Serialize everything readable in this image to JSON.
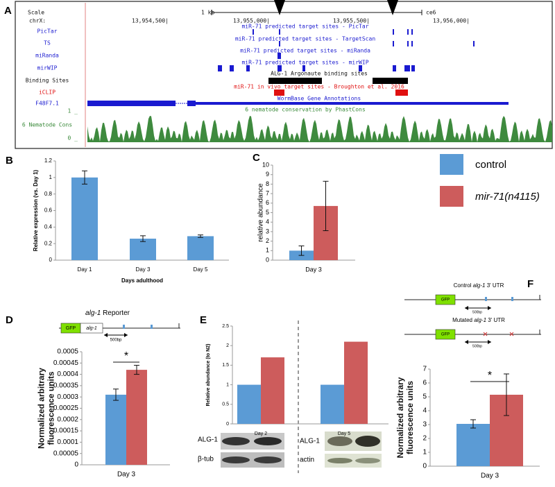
{
  "panel_labels": [
    "A",
    "B",
    "C",
    "D",
    "E",
    "F"
  ],
  "genome_browser": {
    "scale": {
      "label": "Scale",
      "length": "1 kb",
      "assembly": "ce6"
    },
    "position": {
      "label": "chrX:",
      "ticks": [
        "13,954,500|",
        "13,955,000|",
        "13,955,500|",
        "13,956,000|"
      ]
    },
    "tracks": [
      {
        "label": "PicTar",
        "title": "miR-71 predicted target sites - PicTar"
      },
      {
        "label": "TS",
        "title": "miR-71 predicted target sites - TargetScan"
      },
      {
        "label": "miRanda",
        "title": "miR-71 predicted target sites - miRanda"
      },
      {
        "label": "mirWIP",
        "title": "miR-71 predicted target sites - mirWIP"
      },
      {
        "label": "Binding Sites",
        "title": "ALG-1 Argonaute binding sites"
      },
      {
        "label": "iCLIP",
        "title": "miR-71 in vivo target sites - Broughton et al. 2016"
      },
      {
        "label": "F48F7.1",
        "title": "WormBase Gene Annotations"
      }
    ],
    "conservation": {
      "label": "6 Nematode Cons",
      "title": "6 nematode conservation by PhastCons",
      "max_label": "1 _",
      "min_label": "0 _"
    }
  },
  "legend": [
    {
      "name": "control",
      "color": "#5b9bd5"
    },
    {
      "name": "mir-71(n4115)",
      "color": "#cd5c5c"
    }
  ],
  "diagrams": {
    "D": {
      "title_gene": "alg-1",
      "title": "Reporter",
      "gfp": "GFP",
      "gene": "alg-1",
      "scale": "500bp"
    },
    "F": {
      "control_prefix": "Control",
      "control_gene": "alg-1",
      "control_suffix": "3' UTR",
      "mutated_prefix": "Mutated",
      "mutated_gene": "alg-1",
      "mutated_suffix": "3' UTR",
      "gfp": "GFP",
      "scale": "500bp"
    },
    "E": {
      "blots": [
        "ALG-1",
        "β-tub",
        "ALG-1",
        "actin"
      ]
    }
  },
  "chart_data": [
    {
      "type": "bar",
      "ylabel": "Relative expression (vs. Day 1)",
      "xlabel": "Days adulthood",
      "categories": [
        "Day 1",
        "Day 3",
        "Day 5"
      ],
      "series": [
        {
          "color": "#5b9bd5",
          "values": [
            1,
            0.26,
            0.29
          ],
          "errors": [
            0.08,
            0.035,
            0.015
          ]
        }
      ],
      "ylim": [
        0,
        1.2
      ],
      "yticks": [
        0,
        0.2,
        0.4,
        0.6,
        0.8,
        1,
        1.2
      ]
    },
    {
      "type": "bar",
      "ylabel": "relative abundance",
      "categories": [
        "Day 3"
      ],
      "series": [
        {
          "color": "#5b9bd5",
          "values": [
            1
          ],
          "errors": [
            0.5
          ]
        },
        {
          "color": "#cd5c5c",
          "values": [
            5.7
          ],
          "errors": [
            2.6
          ]
        }
      ],
      "ylim": [
        0,
        10
      ],
      "yticks": [
        0,
        1,
        2,
        3,
        4,
        5,
        6,
        7,
        8,
        9,
        10
      ]
    },
    {
      "type": "bar",
      "ylabel": "Normalized arbitrary fluorescence units",
      "categories": [
        "Day 3"
      ],
      "significance": "*",
      "series": [
        {
          "color": "#5b9bd5",
          "values": [
            0.00031
          ],
          "errors": [
            2.5e-05
          ]
        },
        {
          "color": "#cd5c5c",
          "values": [
            0.00042
          ],
          "errors": [
            2e-05
          ]
        }
      ],
      "ylim": [
        0,
        0.0005
      ],
      "yticks": [
        0,
        5e-05,
        0.0001,
        0.00015,
        0.0002,
        0.00025,
        0.0003,
        0.00035,
        0.0004,
        0.00045,
        0.0005
      ]
    },
    {
      "type": "bar",
      "ylabel": "Relative abundance (to N2)",
      "categories": [
        "Day 2",
        "Day 5"
      ],
      "series": [
        {
          "color": "#5b9bd5",
          "values": [
            1,
            1
          ]
        },
        {
          "color": "#cd5c5c",
          "values": [
            1.7,
            2.1
          ]
        }
      ],
      "ylim": [
        0,
        2.5
      ],
      "yticks": [
        0,
        0.5,
        1,
        1.5,
        2,
        2.5
      ]
    },
    {
      "type": "bar",
      "ylabel": "Normalized arbitrary fluorescence units",
      "categories": [
        "Day 3"
      ],
      "significance": "*",
      "series": [
        {
          "color": "#5b9bd5",
          "values": [
            3.05
          ],
          "errors": [
            0.3
          ]
        },
        {
          "color": "#cd5c5c",
          "values": [
            5.15
          ],
          "errors": [
            1.5
          ]
        }
      ],
      "ylim": [
        0,
        7
      ],
      "yticks": [
        0,
        1,
        2,
        3,
        4,
        5,
        6,
        7
      ]
    }
  ]
}
